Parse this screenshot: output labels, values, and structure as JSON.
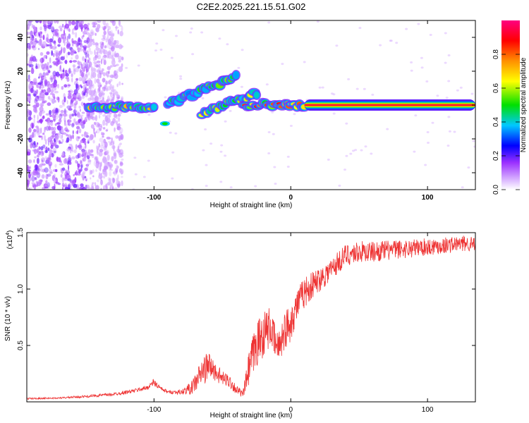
{
  "figure": {
    "title": "C2E2.2025.221.15.51.G02"
  },
  "chart_data": [
    {
      "type": "heatmap",
      "title": "C2E2.2025.221.15.51.G02",
      "xlabel": "Height of straight line (km)",
      "ylabel": "Frequency (Hz)",
      "xlim": [
        -193,
        135
      ],
      "ylim": [
        -50,
        50
      ],
      "xticks": [
        -100,
        0,
        100
      ],
      "yticks": [
        -40,
        -20,
        0,
        20,
        40
      ],
      "colorbar": {
        "label": "Normalized spectral amplitude",
        "range": [
          0.0,
          1.0
        ],
        "ticks": [
          "0.0",
          "0.2",
          "0.4",
          "0.6",
          "0.8"
        ],
        "colors": [
          "#ffffff",
          "#cc99ff",
          "#7b1fe0",
          "#0000ff",
          "#00c8ff",
          "#00e000",
          "#ffff00",
          "#ff8000",
          "#ff0000",
          "#ff0080"
        ]
      },
      "features": [
        {
          "name": "",
          "x": [
            -193,
            -148
          ],
          "y_center": 0,
          "amplitude": 0.15
        },
        {
          "name": "",
          "x": [
            -148,
            -100
          ],
          "y_center": -1,
          "amplitude": 0.55
        },
        {
          "name": "",
          "x": [
            -90,
            -40
          ],
          "y_from": 0,
          "y_to": 17,
          "amplitude": 0.45
        },
        {
          "name": "",
          "x": [
            -65,
            -25
          ],
          "y_from": -5,
          "y_to": 7,
          "amplitude": 0.5
        },
        {
          "name": "",
          "x": [
            -35,
            10
          ],
          "y_center": 0,
          "amplitude": 0.7
        },
        {
          "name": "",
          "x": [
            10,
            135
          ],
          "y_center": 0,
          "amplitude": 0.95
        }
      ]
    },
    {
      "type": "line",
      "xlabel": "Height of straight line (km)",
      "ylabel": "SNR (10 * v/v)",
      "y_multiplier": "(x10",
      "y_multiplier_exp": "4",
      "y_multiplier_close": ")",
      "xlim": [
        -193,
        135
      ],
      "ylim": [
        0,
        15000
      ],
      "xticks": [
        -100,
        0,
        100
      ],
      "yticks": [
        "0.5",
        "1.0",
        "1.5"
      ],
      "ytick_values": [
        5000,
        10000,
        15000
      ],
      "color": "#ee3333",
      "x": [
        -193,
        -170,
        -150,
        -130,
        -115,
        -105,
        -100,
        -95,
        -90,
        -80,
        -72,
        -66,
        -60,
        -55,
        -50,
        -45,
        -40,
        -35,
        -30,
        -25,
        -20,
        -15,
        -10,
        -5,
        0,
        5,
        10,
        20,
        30,
        40,
        50,
        60,
        70,
        80,
        90,
        100,
        110,
        120,
        130,
        135
      ],
      "y": [
        300,
        350,
        500,
        700,
        1000,
        1300,
        1800,
        1200,
        900,
        900,
        1400,
        2700,
        3500,
        2800,
        2200,
        2000,
        1200,
        700,
        3500,
        5500,
        6500,
        7000,
        5000,
        6500,
        7500,
        9000,
        10000,
        11000,
        12000,
        13200,
        13500,
        13500,
        13600,
        13700,
        13800,
        13900,
        14000,
        14100,
        14200,
        14000
      ],
      "noise": [
        100,
        100,
        150,
        200,
        250,
        300,
        500,
        300,
        200,
        300,
        900,
        1800,
        1800,
        1200,
        900,
        900,
        600,
        400,
        2500,
        3000,
        3000,
        2500,
        2000,
        2500,
        2500,
        2000,
        2000,
        1600,
        1500,
        1400,
        1400,
        1300,
        1300,
        1200,
        1200,
        1100,
        1100,
        1000,
        1000,
        1000
      ]
    }
  ]
}
